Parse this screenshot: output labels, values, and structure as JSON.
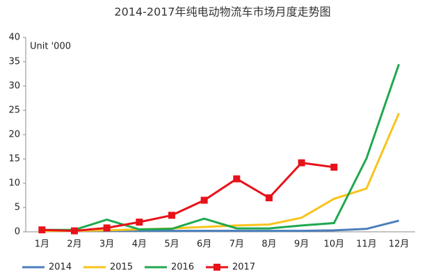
{
  "chart_data": {
    "type": "line",
    "title": "2014-2017年纯电动物流车市场月度走势图",
    "annotation": "Unit '000",
    "categories": [
      "1月",
      "2月",
      "3月",
      "4月",
      "5月",
      "6月",
      "7月",
      "8月",
      "9月",
      "10月",
      "11月",
      "12月"
    ],
    "series": [
      {
        "name": "2014",
        "color": "#4a7ebb",
        "values": [
          0.3,
          0.2,
          0.2,
          0.2,
          0.2,
          0.2,
          0.2,
          0.2,
          0.2,
          0.3,
          0.6,
          2.3
        ]
      },
      {
        "name": "2015",
        "color": "#f9c31a",
        "values": [
          0.2,
          0.2,
          0.3,
          0.5,
          0.7,
          1.0,
          1.3,
          1.5,
          2.9,
          6.8,
          8.9,
          24.4
        ]
      },
      {
        "name": "2016",
        "color": "#1fa84f",
        "values": [
          0.4,
          0.4,
          2.5,
          0.5,
          0.6,
          2.7,
          0.7,
          0.7,
          1.3,
          1.8,
          15.1,
          34.5
        ]
      },
      {
        "name": "2017",
        "color": "#e8121a",
        "marker": "square",
        "values": [
          0.4,
          0.2,
          0.8,
          2.0,
          3.4,
          6.5,
          10.9,
          7.0,
          14.2,
          13.3,
          null,
          null
        ]
      }
    ],
    "ylim": [
      0,
      40
    ],
    "yticks": [
      0,
      5,
      10,
      15,
      20,
      25,
      30,
      35,
      40
    ],
    "legend": "bottom"
  }
}
